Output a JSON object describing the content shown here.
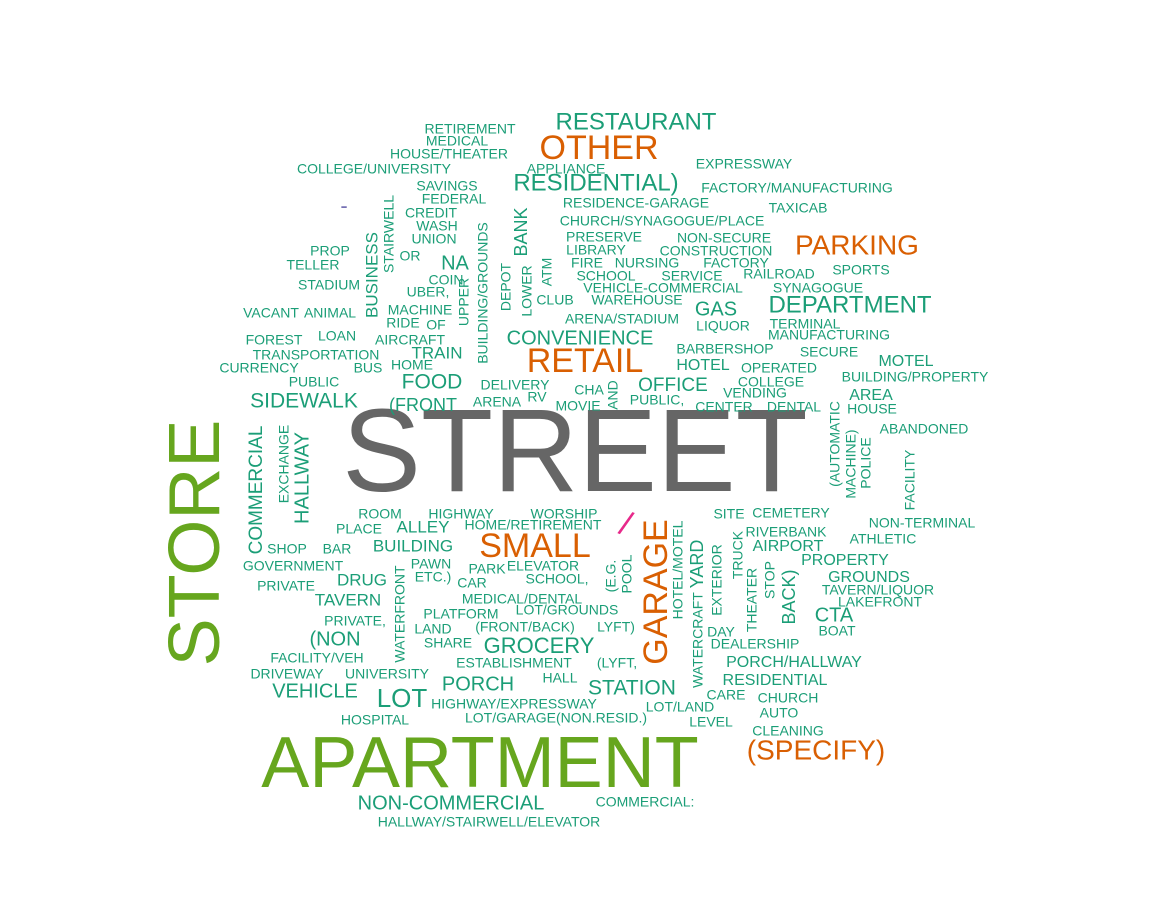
{
  "colors": {
    "dark_gray": "#666666",
    "green": "#66a61e",
    "orange": "#d95f02",
    "teal": "#1b9e77",
    "purple": "#7570b3",
    "magenta": "#e7298a"
  },
  "words": [
    "STREET",
    "STORE",
    "APARTMENT",
    "RETAIL",
    "OTHER",
    "SMALL",
    "GARAGE",
    "PARKING",
    "(SPECIFY)",
    "RESTAURANT",
    "RESIDENTIAL)",
    "DEPARTMENT",
    "CONVENIENCE",
    "SIDEWALK",
    "FOOD",
    "OFFICE",
    "GROCERY",
    "LOT",
    "PORCH",
    "STATION",
    "VEHICLE",
    "(NON",
    "NON-COMMERCIAL",
    "HALLWAY",
    "COMMERCIAL",
    "BUSINESS",
    "BUILDING",
    "ALLEY",
    "DRUG",
    "TAVERN",
    "CTA",
    "GAS",
    "NA",
    "BANK",
    "TRAIN",
    "HOTEL",
    "MOTEL",
    "AREA",
    "(FRONT",
    "PORCH/HALLWAY",
    "RESIDENTIAL",
    "GROUNDS",
    "PROPERTY",
    "BACK)",
    "YARD",
    "AIRPORT",
    "EXPRESSWAY",
    "FACTORY/MANUFACTURING",
    "TAXICAB",
    "RESIDENCE-GARAGE",
    "CHURCH/SYNAGOGUE/PLACE",
    "COLLEGE/UNIVERSITY",
    "HOUSE/THEATER",
    "MEDICAL",
    "RETIREMENT",
    "APPLIANCE",
    "SAVINGS",
    "FEDERAL",
    "CREDIT",
    "WASH",
    "UNION",
    "STAIRWELL",
    "BUILDING/GROUNDS",
    "DEPOT",
    "LOWER",
    "ATM",
    "PRESERVE",
    "LIBRARY",
    "NON-SECURE",
    "CONSTRUCTION",
    "FIRE",
    "NURSING",
    "FACTORY",
    "SCHOOL",
    "SERVICE",
    "RAILROAD",
    "SPORTS",
    "VEHICLE-COMMERCIAL",
    "SYNAGOGUE",
    "CLUB",
    "WAREHOUSE",
    "ARENA/STADIUM",
    "LIQUOR",
    "TERMINAL",
    "MANUFACTURING",
    "BARBERSHOP",
    "SECURE",
    "OPERATED",
    "BUILDING/PROPERTY",
    "COLLEGE",
    "VENDING",
    "CENTER",
    "DENTAL",
    "HOUSE",
    "ABANDONED",
    "(AUTOMATIC",
    "MACHINE)",
    "POLICE",
    "FACILITY",
    "NON-TERMINAL",
    "ATHLETIC",
    "TAVERN/LIQUOR",
    "LAKEFRONT",
    "BOAT",
    "DEALERSHIP",
    "CHURCH",
    "AUTO",
    "CLEANING",
    "CARE",
    "LEVEL",
    "LOT/LAND",
    "HIGHWAY/EXPRESSWAY",
    "LOT/GARAGE(NON.RESID.)",
    "HOSPITAL",
    "UNIVERSITY",
    "DRIVEWAY",
    "FACILITY/VEH",
    "HALLWAY/STAIRWELL/ELEVATOR",
    "COMMERCIAL:",
    "ESTABLISHMENT",
    "(LYFT,",
    "HALL",
    "SHARE",
    "LAND",
    "(FRONT/BACK)",
    "LYFT)",
    "PLATFORM",
    "LOT/GROUNDS",
    "MEDICAL/DENTAL",
    "CAR",
    "SCHOOL,",
    "ELEVATOR",
    "PARK",
    "ETC.)",
    "PAWN",
    "PRIVATE",
    "GOVERNMENT",
    "SHOP",
    "BAR",
    "PLACE",
    "ROOM",
    "HIGHWAY",
    "WORSHIP",
    "HOME/RETIREMENT",
    "EXCHANGE",
    "CURRENCY",
    "TRANSPORTATION",
    "FOREST",
    "VACANT",
    "ANIMAL",
    "STADIUM",
    "TELLER",
    "PROP",
    "LOAN",
    "AIRCRAFT",
    "HOME",
    "PUBLIC",
    "BUS",
    "MACHINE",
    "RIDE",
    "OF",
    "UBER,",
    "COIN",
    "OR",
    "UPPER",
    "DELIVERY",
    "CHA",
    "ARENA",
    "RV",
    "MOVIE",
    "AND",
    "PUBLIC,",
    "(E.G.",
    "POOL",
    "HOTEL/MOTEL",
    "WATERFRONT",
    "WATERCRAFT",
    "EXTERIOR",
    "TRUCK",
    "THEATER",
    "STOP",
    "DAY",
    "SITE",
    "CEMETERY",
    "RIVERBANK",
    "PRIVATE,",
    "-",
    "/"
  ]
}
